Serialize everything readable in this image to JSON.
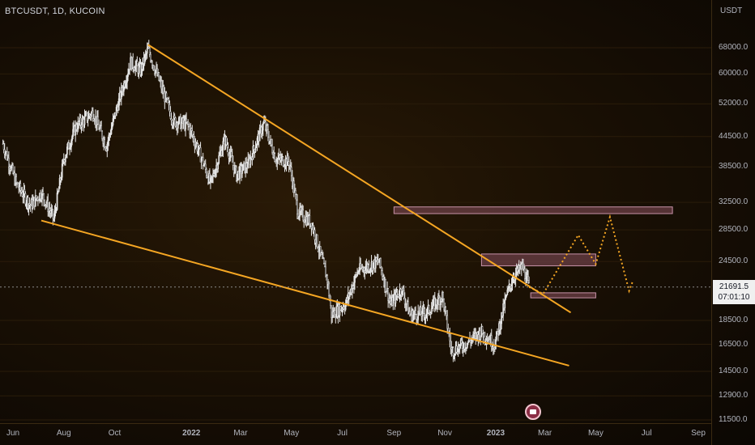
{
  "header": {
    "symbol_title": "BTCUSDT, 1D, KUCOIN"
  },
  "price_axis": {
    "currency": "USDT"
  },
  "last_price": {
    "value": "21691.5",
    "countdown": "07:01:10"
  },
  "colors": {
    "candles": "#e6e6e6",
    "trendline": "#f5a623",
    "zone_fill": "#6b3f45",
    "zone_border": "#c792a8",
    "projection": "#f5a623",
    "crosshair": "#8a8a8a"
  },
  "chart_data": {
    "type": "line",
    "title": "BTCUSDT, 1D, KUCOIN",
    "xlabel": "",
    "ylabel": "",
    "y_scale": "log",
    "ylim": [
      11500,
      80000
    ],
    "y_ticks": [
      "68000.0",
      "60000.0",
      "52000.0",
      "44500.0",
      "38500.0",
      "32500.0",
      "28500.0",
      "24500.0",
      "18500.0",
      "16500.0",
      "14500.0",
      "12900.0",
      "11500.0"
    ],
    "x_ticks": [
      "Jun",
      "Aug",
      "Oct",
      "2022",
      "Mar",
      "May",
      "Jul",
      "Sep",
      "Nov",
      "2023",
      "Mar",
      "May",
      "Jul",
      "Sep"
    ],
    "x_range": [
      "2021-05-20",
      "2023-10-20"
    ],
    "series": [
      {
        "values": [
          [
            "2021-05-20",
            43000
          ],
          [
            "2021-06-05",
            35500
          ],
          [
            "2021-06-22",
            32000
          ],
          [
            "2021-07-05",
            34000
          ],
          [
            "2021-07-20",
            30000
          ],
          [
            "2021-08-01",
            40000
          ],
          [
            "2021-08-15",
            46500
          ],
          [
            "2021-09-05",
            50000
          ],
          [
            "2021-09-21",
            42500
          ],
          [
            "2021-10-05",
            52000
          ],
          [
            "2021-10-20",
            63500
          ],
          [
            "2021-11-01",
            61000
          ],
          [
            "2021-11-10",
            67500
          ],
          [
            "2021-11-25",
            57000
          ],
          [
            "2021-12-10",
            48000
          ],
          [
            "2021-12-28",
            47000
          ],
          [
            "2022-01-10",
            41500
          ],
          [
            "2022-01-24",
            35500
          ],
          [
            "2022-02-10",
            44000
          ],
          [
            "2022-02-24",
            37000
          ],
          [
            "2022-03-10",
            39000
          ],
          [
            "2022-03-29",
            47500
          ],
          [
            "2022-04-12",
            40000
          ],
          [
            "2022-04-28",
            39500
          ],
          [
            "2022-05-09",
            31000
          ],
          [
            "2022-05-25",
            29500
          ],
          [
            "2022-06-13",
            22500
          ],
          [
            "2022-06-18",
            19000
          ],
          [
            "2022-07-05",
            20000
          ],
          [
            "2022-07-20",
            23500
          ],
          [
            "2022-08-14",
            24500
          ],
          [
            "2022-08-28",
            20000
          ],
          [
            "2022-09-10",
            21500
          ],
          [
            "2022-09-20",
            19000
          ],
          [
            "2022-10-10",
            19200
          ],
          [
            "2022-10-29",
            20800
          ],
          [
            "2022-11-09",
            16000
          ],
          [
            "2022-11-25",
            16500
          ],
          [
            "2022-12-15",
            17500
          ],
          [
            "2022-12-31",
            16500
          ],
          [
            "2023-01-14",
            20800
          ],
          [
            "2023-01-22",
            22800
          ],
          [
            "2023-02-02",
            23900
          ],
          [
            "2023-02-10",
            21691.5
          ]
        ]
      },
      {
        "name": "",
        "values": [
          [
            "2021-11-10",
            69000
          ],
          [
            "2023-04-01",
            19200
          ]
        ]
      },
      {
        "name": "",
        "values": [
          [
            "2021-07-05",
            29800
          ],
          [
            "2023-03-30",
            14900
          ]
        ]
      },
      {
        "values": [
          [
            "2023-02-10",
            21691.5
          ],
          [
            "2023-02-27",
            21000
          ],
          [
            "2023-04-10",
            27800
          ],
          [
            "2023-05-01",
            24200
          ],
          [
            "2023-05-18",
            30300
          ],
          [
            "2023-06-10",
            21300
          ],
          [
            "2023-06-14",
            22200
          ]
        ]
      }
    ],
    "zones": [
      {
        "x": [
          "2022-09-01",
          "2023-08-01"
        ],
        "y": [
          30800,
          31800
        ]
      },
      {
        "x": [
          "2022-12-15",
          "2023-05-01"
        ],
        "y": [
          24000,
          25400
        ]
      },
      {
        "x": [
          "2023-02-12",
          "2023-05-01"
        ],
        "y": [
          20600,
          21100
        ]
      }
    ]
  }
}
